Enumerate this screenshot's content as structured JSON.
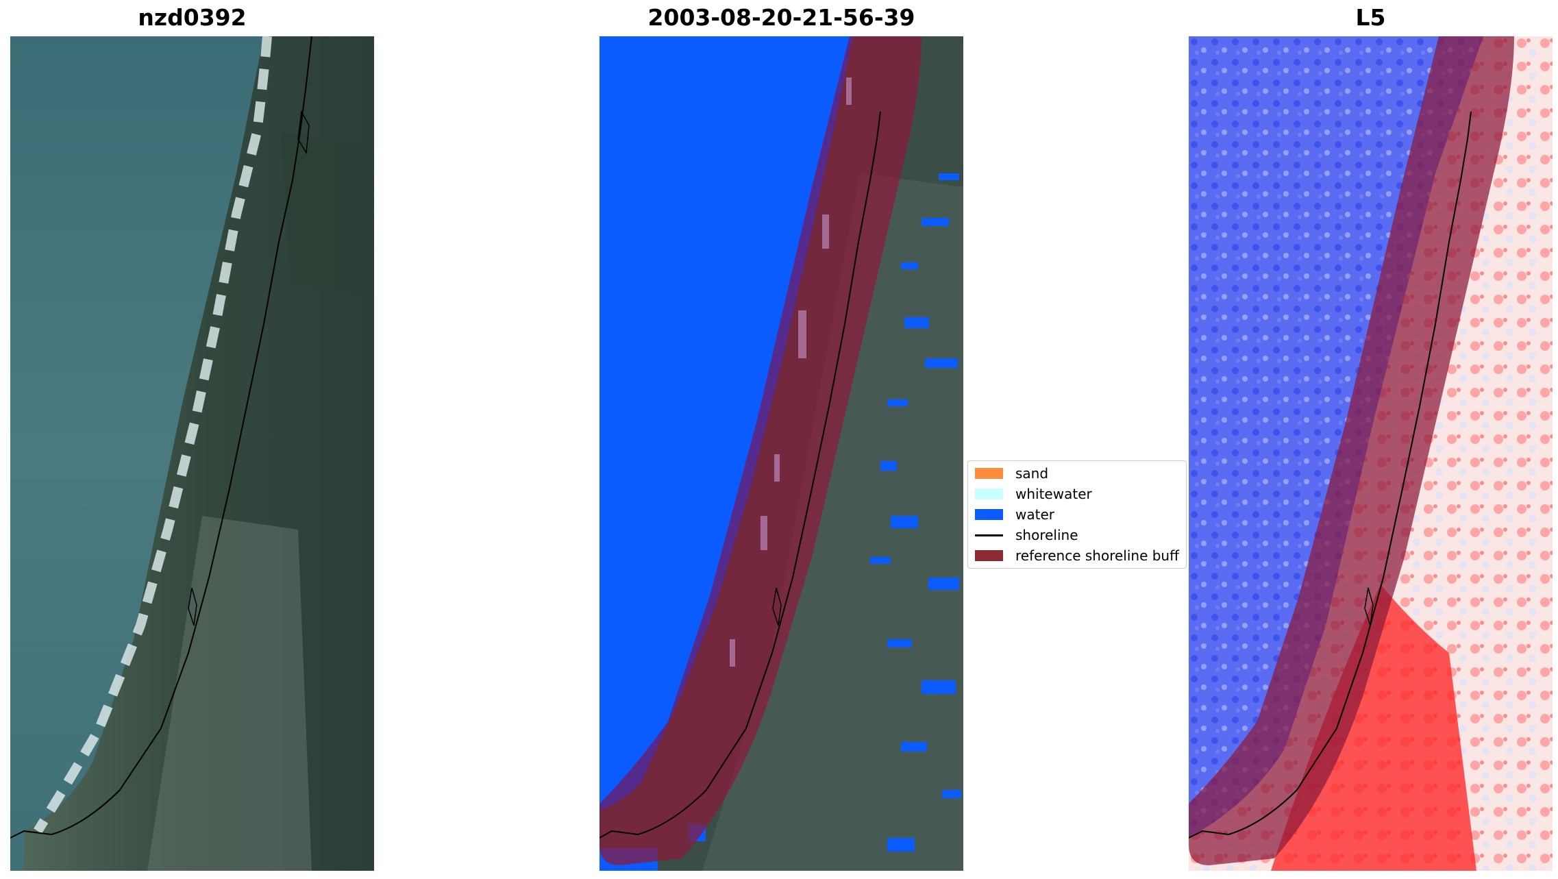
{
  "figure": {
    "panels": [
      {
        "title": "nzd0392",
        "kind": "rgb-image"
      },
      {
        "title": "2003-08-20-21-56-39",
        "kind": "classified-image"
      },
      {
        "title": "L5",
        "kind": "index-image"
      }
    ],
    "legend": {
      "items": [
        {
          "label": "sand",
          "type": "patch",
          "color": "#ff8c3a"
        },
        {
          "label": "whitewater",
          "type": "patch",
          "color": "#c8ffff"
        },
        {
          "label": "water",
          "type": "patch",
          "color": "#0a5cff"
        },
        {
          "label": "shoreline",
          "type": "line",
          "color": "#000000"
        },
        {
          "label": "reference shoreline buff",
          "type": "patch",
          "color": "#8b2a32"
        }
      ]
    },
    "colors": {
      "ocean": "#3f6f78",
      "land": "#34473f",
      "water_class": "#0a5cff",
      "buffer": "#8b1a2e",
      "index_low": "#2a3bf0",
      "index_high": "#ff0000"
    }
  }
}
